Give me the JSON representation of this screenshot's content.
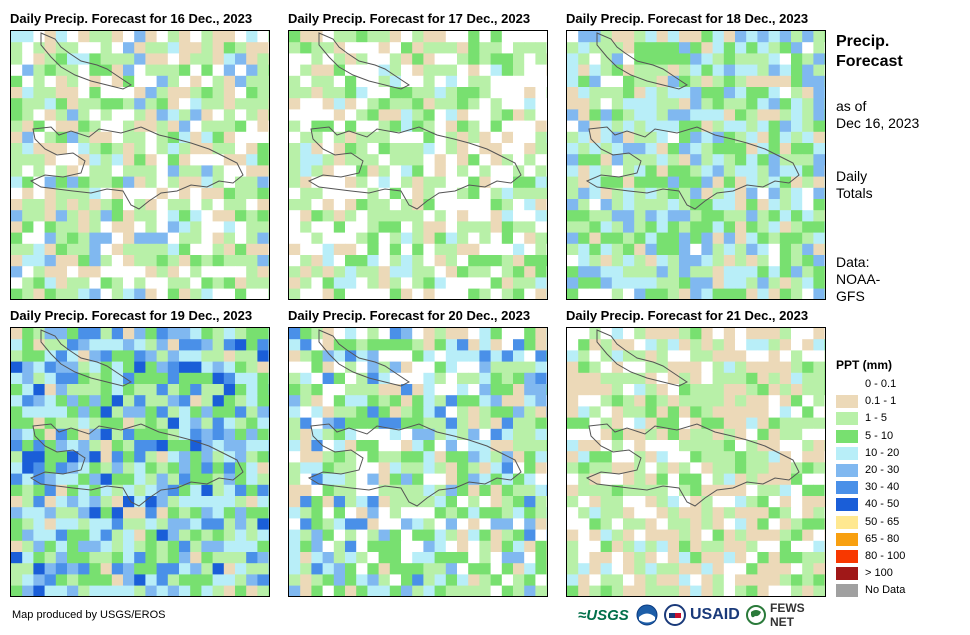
{
  "panels": [
    {
      "title": "Daily Precip. Forecast for 16 Dec., 2023"
    },
    {
      "title": "Daily Precip. Forecast for 17 Dec., 2023"
    },
    {
      "title": "Daily Precip. Forecast for 18 Dec., 2023"
    },
    {
      "title": "Daily Precip. Forecast for 19 Dec., 2023"
    },
    {
      "title": "Daily Precip. Forecast for 20 Dec., 2023"
    },
    {
      "title": "Daily Precip. Forecast for 21 Dec., 2023"
    }
  ],
  "sidebar": {
    "title_line1": "Precip.",
    "title_line2": "Forecast",
    "asof_line1": "as of",
    "asof_line2": "Dec 16, 2023",
    "totals_line1": "Daily",
    "totals_line2": "Totals",
    "data_line1": "Data:",
    "data_line2": "NOAA-",
    "data_line3": "GFS"
  },
  "legend": {
    "title": "PPT (mm)",
    "items": [
      {
        "label": "0 - 0.1",
        "color": "#ffffff"
      },
      {
        "label": "0.1 - 1",
        "color": "#ecd9b8"
      },
      {
        "label": "1 - 5",
        "color": "#b8f0a8"
      },
      {
        "label": "5 - 10",
        "color": "#78e070"
      },
      {
        "label": "10 - 20",
        "color": "#b8eef8"
      },
      {
        "label": "20 - 30",
        "color": "#80b8f0"
      },
      {
        "label": "30 - 40",
        "color": "#4a90e8"
      },
      {
        "label": "40 - 50",
        "color": "#1a5ed8"
      },
      {
        "label": "50 - 65",
        "color": "#ffe890"
      },
      {
        "label": "65 - 80",
        "color": "#f8a010"
      },
      {
        "label": "80 - 100",
        "color": "#f83800"
      },
      {
        "label": "> 100",
        "color": "#a01818"
      },
      {
        "label": "No Data",
        "color": "#a0a0a0"
      }
    ]
  },
  "credit": "Map produced by USGS/EROS",
  "logos": {
    "usgs": "≈USGS",
    "usaid": "USAID",
    "fews": "FEWS NET"
  }
}
